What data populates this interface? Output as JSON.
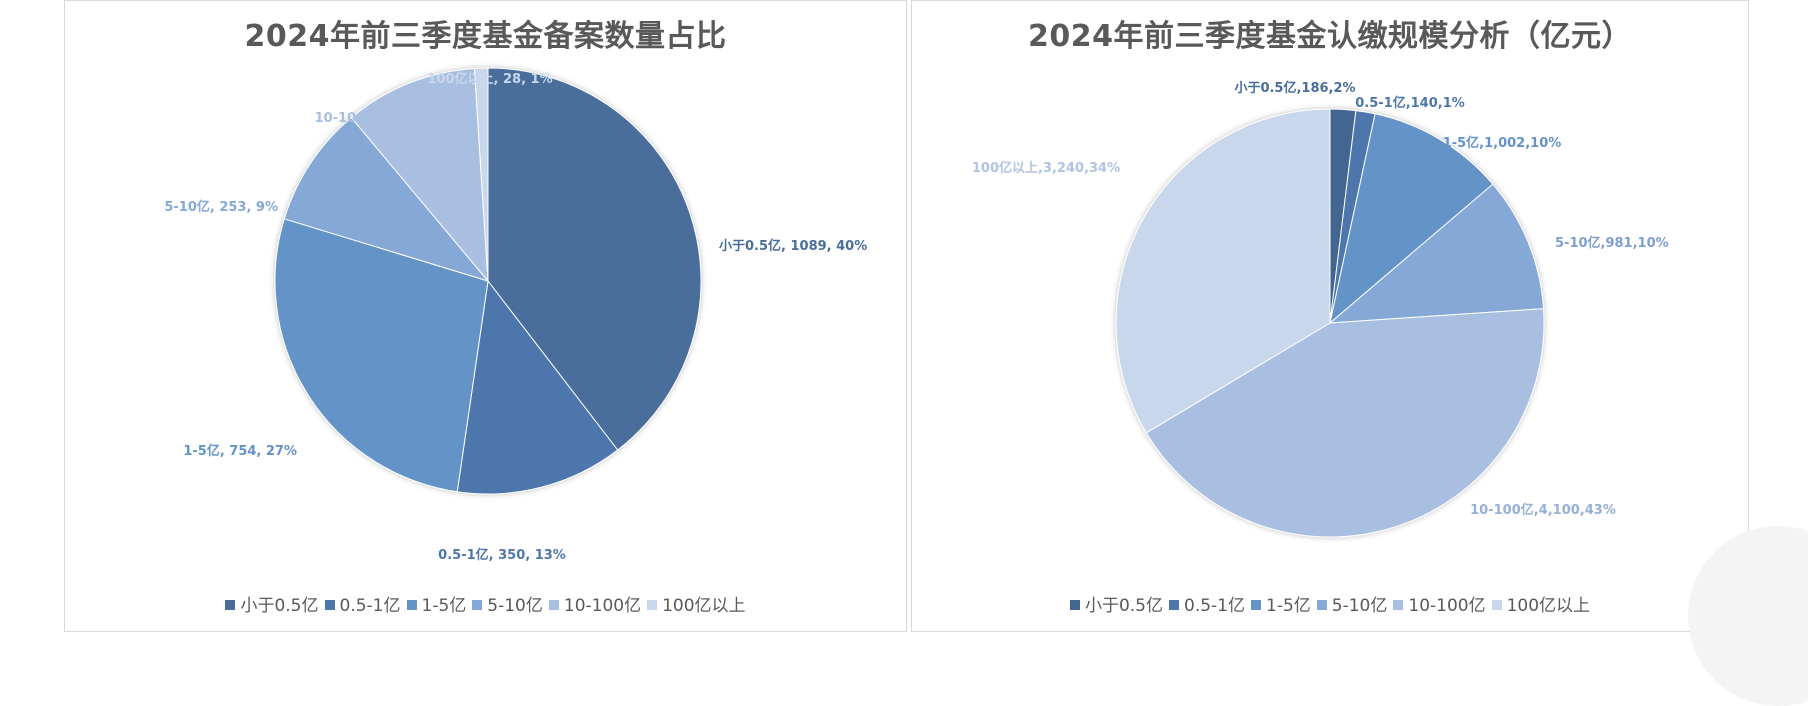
{
  "chart_data": [
    {
      "type": "pie",
      "title": "2024年前三季度基金备案数量占比",
      "categories": [
        "小于0.5亿",
        "0.5-1亿",
        "1-5亿",
        "5-10亿",
        "10-100亿",
        "100亿以上"
      ],
      "values": [
        1089,
        350,
        754,
        253,
        277,
        28
      ],
      "percent_labels": [
        "40%",
        "13%",
        "27%",
        "9%",
        "10%",
        "1%"
      ],
      "data_labels": [
        "小于0.5亿, 1089, 40%",
        "0.5-1亿, 350, 13%",
        "1-5亿, 754, 27%",
        "5-10亿, 253, 9%",
        "10-100亿, 277, 10%",
        "100亿以上, 28, 1%"
      ],
      "colors": [
        "#4a6e9b",
        "#4d77ac",
        "#6493c7",
        "#85a8d6",
        "#a8bfe2",
        "#c9d7ec"
      ],
      "legend_position": "bottom"
    },
    {
      "type": "pie",
      "title": "2024年前三季度基金认缴规模分析（亿元）",
      "categories": [
        "小于0.5亿",
        "0.5-1亿",
        "1-5亿",
        "5-10亿",
        "10-100亿",
        "100亿以上"
      ],
      "values": [
        186,
        140,
        1002,
        981,
        4100,
        3240
      ],
      "percent_labels": [
        "2%",
        "1%",
        "10%",
        "10%",
        "43%",
        "34%"
      ],
      "data_labels": [
        "小于0.5亿,186,2%",
        "0.5-1亿,140,1%",
        "1-5亿,1,002,10%",
        "5-10亿,981,10%",
        "10-100亿,4,100,43%",
        "100亿以上,3,240,34%"
      ],
      "colors": [
        "#436591",
        "#4d77ac",
        "#6493c7",
        "#85a8d6",
        "#a8bfe2",
        "#c9d7ec"
      ],
      "label_colors": [
        "#4a6e9b",
        "#4d77ac",
        "#6493c7",
        "#7f9fcc",
        "#95afd8",
        "#afc3e3"
      ],
      "legend_position": "bottom"
    }
  ]
}
